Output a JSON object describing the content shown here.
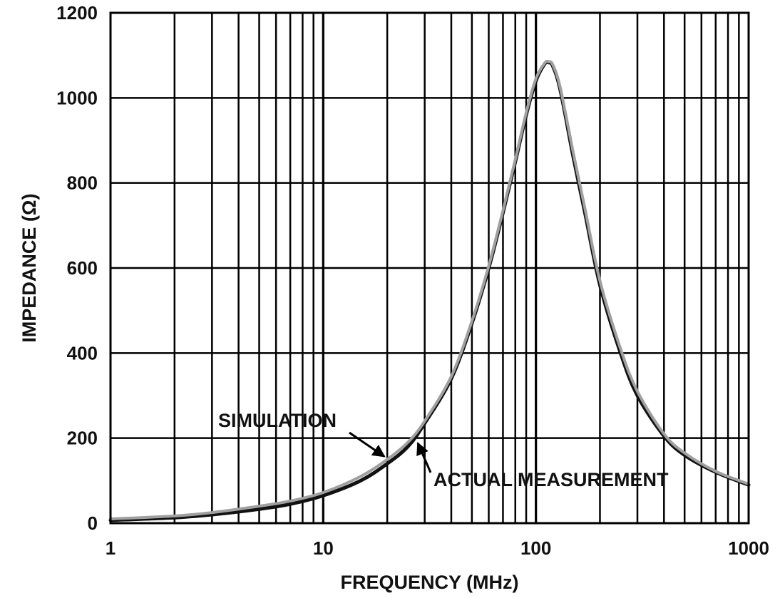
{
  "chart_data": {
    "type": "line",
    "xscale": "log",
    "xlim": [
      1,
      1000
    ],
    "ylim": [
      0,
      1200
    ],
    "xlabel": "FREQUENCY (MHz)",
    "ylabel": "IMPEDANCE (Ω)",
    "grid": true,
    "x_ticks": [
      "1",
      "10",
      "100",
      "1000"
    ],
    "y_ticks": [
      "0",
      "200",
      "400",
      "600",
      "800",
      "1000",
      "1200"
    ],
    "series": [
      {
        "name": "ACTUAL MEASUREMENT",
        "color": "#111111",
        "x": [
          1,
          2,
          3,
          5,
          7,
          10,
          15,
          20,
          25,
          30,
          40,
          50,
          60,
          70,
          80,
          90,
          100,
          110,
          115,
          120,
          130,
          150,
          170,
          200,
          250,
          300,
          400,
          500,
          700,
          1000
        ],
        "y": [
          7,
          13,
          20,
          33,
          45,
          65,
          100,
          140,
          180,
          235,
          340,
          470,
          600,
          730,
          850,
          960,
          1040,
          1080,
          1083,
          1075,
          1020,
          860,
          730,
          560,
          400,
          300,
          205,
          160,
          120,
          90
        ]
      },
      {
        "name": "SIMULATION",
        "color": "#a0a0a0",
        "x": [
          1,
          2,
          3,
          5,
          7,
          10,
          15,
          20,
          25,
          30,
          40,
          50,
          60,
          70,
          80,
          90,
          100,
          110,
          115,
          120,
          130,
          150,
          170,
          200,
          250,
          300,
          400,
          500,
          700,
          1000
        ],
        "y": [
          10,
          17,
          25,
          40,
          52,
          72,
          110,
          150,
          190,
          240,
          345,
          475,
          605,
          735,
          855,
          965,
          1045,
          1082,
          1085,
          1078,
          1025,
          870,
          740,
          570,
          410,
          310,
          210,
          165,
          122,
          92
        ]
      }
    ],
    "annotations": [
      {
        "text": "SIMULATION",
        "points_to": {
          "x": 20,
          "y": 150
        }
      },
      {
        "text": "ACTUAL MEASUREMENT",
        "points_to": {
          "x": 27,
          "y": 195
        }
      }
    ]
  }
}
